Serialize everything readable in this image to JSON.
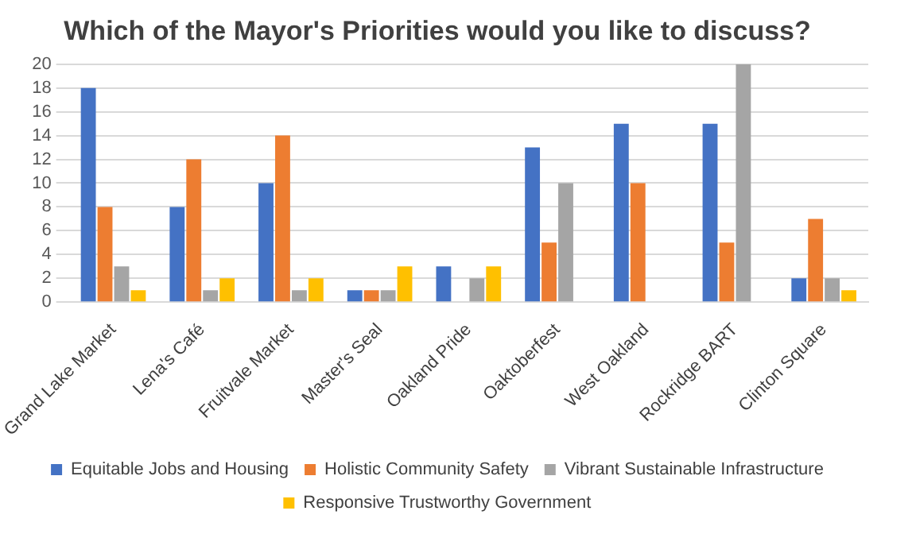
{
  "chart_data": {
    "type": "bar",
    "title": "Which of the Mayor's Priorities would you like to discuss?",
    "categories": [
      "Grand Lake Market",
      "Lena's Café",
      "Fruitvale Market",
      "Master's Seal",
      "Oakland Pride",
      "Oaktoberfest",
      "West Oakland",
      "Rockridge BART",
      "Clinton Square"
    ],
    "series": [
      {
        "name": "Equitable Jobs and Housing",
        "color": "#4472c4",
        "values": [
          18,
          8,
          10,
          1,
          3,
          13,
          15,
          15,
          2
        ]
      },
      {
        "name": "Holistic Community Safety",
        "color": "#ed7d31",
        "values": [
          8,
          12,
          14,
          1,
          null,
          5,
          10,
          5,
          7
        ]
      },
      {
        "name": "Vibrant Sustainable Infrastructure",
        "color": "#a5a5a5",
        "values": [
          3,
          1,
          1,
          1,
          2,
          10,
          null,
          20,
          2
        ]
      },
      {
        "name": "Responsive Trustworthy Government",
        "color": "#ffc000",
        "values": [
          1,
          2,
          2,
          3,
          3,
          null,
          null,
          null,
          1
        ]
      }
    ],
    "ylim": [
      0,
      20
    ],
    "yticks": [
      0,
      2,
      4,
      6,
      8,
      10,
      12,
      14,
      16,
      18,
      20
    ],
    "grid": "y",
    "legend": "bottom"
  }
}
